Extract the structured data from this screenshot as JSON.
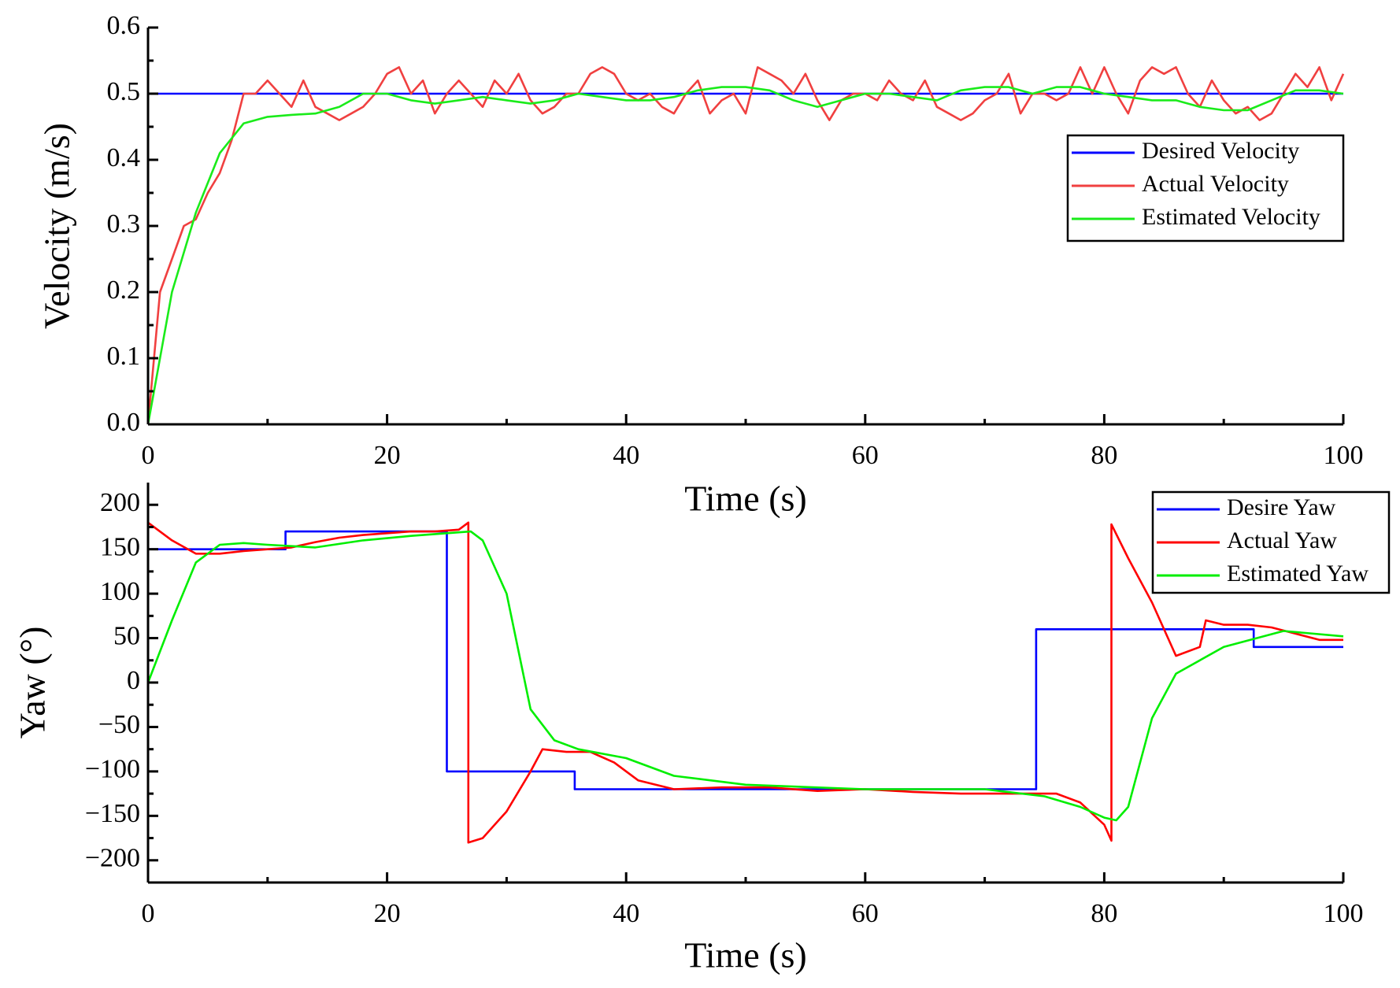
{
  "chart_data": [
    {
      "type": "line",
      "xlabel": "Time (s)",
      "ylabel": "Velocity (m/s)",
      "xlim": [
        0,
        100
      ],
      "xticks": [
        0,
        20,
        40,
        60,
        80,
        100
      ],
      "ylim": [
        0,
        0.6
      ],
      "yticks": [
        {
          "value": 0,
          "label": "0.0"
        },
        0.1,
        0.2,
        0.3,
        0.4,
        0.5,
        0.6
      ],
      "legend": "upper right",
      "series": [
        {
          "name": "Desired Velocity",
          "color": "#0000ff",
          "x": [
            0,
            100
          ],
          "values": [
            0.5,
            0.5
          ]
        },
        {
          "name": "Actual Velocity",
          "color": "#f04040",
          "x": [
            0,
            1,
            2,
            3,
            4,
            5,
            6,
            7,
            8,
            9,
            10,
            11,
            12,
            13,
            14,
            15,
            16,
            17,
            18,
            19,
            20,
            21,
            22,
            23,
            24,
            25,
            26,
            27,
            28,
            29,
            30,
            31,
            32,
            33,
            34,
            35,
            36,
            37,
            38,
            39,
            40,
            41,
            42,
            43,
            44,
            45,
            46,
            47,
            48,
            49,
            50,
            51,
            52,
            53,
            54,
            55,
            56,
            57,
            58,
            59,
            60,
            61,
            62,
            63,
            64,
            65,
            66,
            67,
            68,
            69,
            70,
            71,
            72,
            73,
            74,
            75,
            76,
            77,
            78,
            79,
            80,
            81,
            82,
            83,
            84,
            85,
            86,
            87,
            88,
            89,
            90,
            91,
            92,
            93,
            94,
            95,
            96,
            97,
            98,
            99,
            100
          ],
          "values": [
            0,
            0.2,
            0.25,
            0.3,
            0.31,
            0.35,
            0.38,
            0.43,
            0.5,
            0.5,
            0.52,
            0.5,
            0.48,
            0.52,
            0.48,
            0.47,
            0.46,
            0.47,
            0.48,
            0.5,
            0.53,
            0.54,
            0.5,
            0.52,
            0.47,
            0.5,
            0.52,
            0.5,
            0.48,
            0.52,
            0.5,
            0.53,
            0.49,
            0.47,
            0.48,
            0.5,
            0.5,
            0.53,
            0.54,
            0.53,
            0.5,
            0.49,
            0.5,
            0.48,
            0.47,
            0.5,
            0.52,
            0.47,
            0.49,
            0.5,
            0.47,
            0.54,
            0.53,
            0.52,
            0.5,
            0.53,
            0.49,
            0.46,
            0.49,
            0.5,
            0.5,
            0.49,
            0.52,
            0.5,
            0.49,
            0.52,
            0.48,
            0.47,
            0.46,
            0.47,
            0.49,
            0.5,
            0.53,
            0.47,
            0.5,
            0.5,
            0.49,
            0.5,
            0.54,
            0.5,
            0.54,
            0.5,
            0.47,
            0.52,
            0.54,
            0.53,
            0.54,
            0.5,
            0.48,
            0.52,
            0.49,
            0.47,
            0.48,
            0.46,
            0.47,
            0.5,
            0.53,
            0.51,
            0.54,
            0.49,
            0.53
          ]
        },
        {
          "name": "Estimated Velocity",
          "color": "#1aeb1a",
          "x": [
            0,
            2,
            4,
            6,
            8,
            10,
            12,
            14,
            16,
            18,
            20,
            22,
            24,
            26,
            28,
            30,
            32,
            34,
            36,
            38,
            40,
            42,
            44,
            46,
            48,
            50,
            52,
            54,
            56,
            58,
            60,
            62,
            64,
            66,
            68,
            70,
            72,
            74,
            76,
            78,
            80,
            82,
            84,
            86,
            88,
            90,
            92,
            94,
            96,
            98,
            100
          ],
          "values": [
            0,
            0.2,
            0.32,
            0.41,
            0.455,
            0.465,
            0.468,
            0.47,
            0.48,
            0.5,
            0.5,
            0.49,
            0.485,
            0.49,
            0.495,
            0.49,
            0.485,
            0.49,
            0.5,
            0.495,
            0.49,
            0.49,
            0.495,
            0.505,
            0.51,
            0.51,
            0.505,
            0.49,
            0.48,
            0.49,
            0.5,
            0.5,
            0.495,
            0.49,
            0.505,
            0.51,
            0.51,
            0.5,
            0.51,
            0.51,
            0.5,
            0.495,
            0.49,
            0.49,
            0.48,
            0.475,
            0.475,
            0.49,
            0.505,
            0.505,
            0.5
          ]
        }
      ]
    },
    {
      "type": "line",
      "xlabel": "Time (s)",
      "ylabel": "Yaw (°)",
      "xlim": [
        0,
        100
      ],
      "xticks": [
        0,
        20,
        40,
        60,
        80,
        100
      ],
      "ylim": [
        -225,
        225
      ],
      "yticks": [
        {
          "value": -200,
          "label": "−200"
        },
        {
          "value": -150,
          "label": "−150"
        },
        {
          "value": -100,
          "label": "−100"
        },
        {
          "value": -50,
          "label": "−50"
        },
        0,
        50,
        100,
        150,
        200
      ],
      "legend": "upper right",
      "series": [
        {
          "name": "Desire Yaw",
          "color": "#0000ff",
          "x": [
            0,
            11.5,
            11.5,
            25,
            25,
            35.7,
            35.7,
            74.3,
            74.3,
            92.5,
            92.5,
            100
          ],
          "values": [
            150,
            150,
            170,
            170,
            -100,
            -100,
            -120,
            -120,
            60,
            60,
            40,
            40
          ]
        },
        {
          "name": "Actual Yaw",
          "color": "#ff0000",
          "x": [
            0,
            2,
            4,
            6,
            8,
            10,
            12,
            14,
            16,
            18,
            20,
            22,
            24,
            26,
            26.8,
            26.8,
            28,
            30,
            32,
            33,
            35,
            37,
            39,
            41,
            44,
            48,
            52,
            56,
            60,
            64,
            68,
            72,
            76,
            78,
            80,
            80.6,
            80.6,
            82,
            84,
            86,
            88,
            88.5,
            90,
            92,
            94,
            96,
            98,
            100
          ],
          "values": [
            180,
            160,
            145,
            145,
            148,
            150,
            152,
            158,
            163,
            166,
            168,
            170,
            170,
            172,
            180,
            -180,
            -175,
            -145,
            -100,
            -75,
            -78,
            -78,
            -90,
            -110,
            -120,
            -118,
            -118,
            -122,
            -120,
            -123,
            -125,
            -125,
            -125,
            -135,
            -160,
            -178,
            178,
            140,
            90,
            30,
            40,
            70,
            65,
            65,
            62,
            55,
            48,
            48
          ]
        },
        {
          "name": "Estimated Yaw",
          "color": "#00ee00",
          "x": [
            0,
            2,
            4,
            6,
            8,
            10,
            14,
            18,
            22,
            25,
            27,
            28,
            30,
            32,
            34,
            36,
            40,
            44,
            50,
            60,
            70,
            75,
            78,
            80,
            81,
            82,
            84,
            86,
            90,
            95,
            100
          ],
          "values": [
            0,
            70,
            135,
            155,
            157,
            155,
            152,
            160,
            165,
            168,
            170,
            160,
            100,
            -30,
            -65,
            -75,
            -85,
            -105,
            -115,
            -120,
            -120,
            -128,
            -140,
            -152,
            -155,
            -140,
            -40,
            10,
            40,
            58,
            52
          ]
        }
      ]
    }
  ]
}
